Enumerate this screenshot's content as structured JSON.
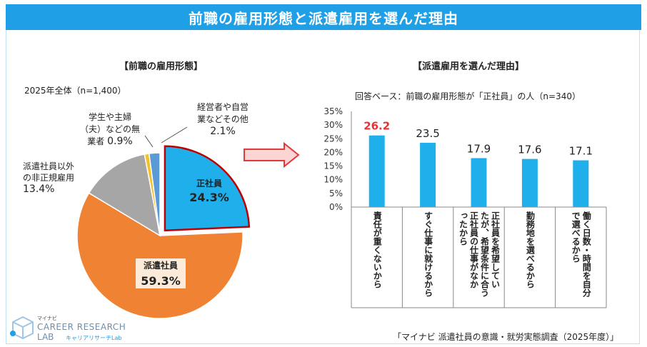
{
  "title": "前職の雇用形態と派遣雇用を選んだ理由",
  "left": {
    "heading": "【前職の雇用形態】",
    "base": "2025年全体（n=1,400）"
  },
  "right": {
    "heading": "【派遣雇用を選んだ理由】",
    "base": "回答ベース：前職の雇用形態が「正社員」の人（n=340）"
  },
  "source": "「マイナビ 派遣社員の意識・就労実態調査（2025年度）」",
  "logo": {
    "brand_small": "マイナビ",
    "line1": "CAREER RESEARCH",
    "line2": "LAB",
    "sub": "キャリアリサーチLab"
  },
  "pie_labels": {
    "seishain_name": "正社員",
    "seishain_value": "24.3%",
    "haken_name": "派遣社員",
    "haken_value": "59.3%",
    "hiseiki_line1": "派遣社員以外",
    "hiseiki_line2": "の非正規雇用",
    "hiseiki_value": "13.4%",
    "student_line1": "学生や主婦",
    "student_line2": "（夫）などの無",
    "student_line3": "業者",
    "student_value": "0.9%",
    "other_line1": "経営者や自営",
    "other_line2": "業などその他",
    "other_value": "2.1%"
  },
  "colors": {
    "banner": "#1fa0e6",
    "seishain": "#1fb0ec",
    "haken": "#ef8233",
    "hiseiki": "#a6a6a6",
    "student": "#f2c12e",
    "other": "#5b9bd5",
    "highlight": "#c00000",
    "bar": "#1fb0ec"
  },
  "chart_data": [
    {
      "type": "pie",
      "title": "【前職の雇用形態】",
      "subtitle": "2025年全体（n=1,400）",
      "categories": [
        "正社員",
        "派遣社員",
        "派遣社員以外の非正規雇用",
        "学生や主婦（夫）などの無業者",
        "経営者や自営業などその他"
      ],
      "values": [
        24.3,
        59.3,
        13.4,
        0.9,
        2.1
      ],
      "unit": "%"
    },
    {
      "type": "bar",
      "title": "【派遣雇用を選んだ理由】",
      "subtitle": "回答ベース：前職の雇用形態が「正社員」の人（n=340）",
      "categories": [
        "責任が重くないから",
        "すぐ仕事に就けるから",
        "正社員を希望していたが、希望条件に合う正社員の仕事がなかったから",
        "勤務地を選べるから",
        "働く日数・時間を自分で選べるから"
      ],
      "category_lines": [
        [
          "責任が重くないから"
        ],
        [
          "すぐ仕事に就けるから"
        ],
        [
          "正社員を希望してい",
          "たが、希望条件に合う",
          "正社員の仕事がなか",
          "ったから"
        ],
        [
          "勤務地を選べるから"
        ],
        [
          "働く日数・時間を自分",
          "で選べるから"
        ]
      ],
      "values": [
        26.2,
        23.5,
        17.9,
        17.6,
        17.1
      ],
      "data_labels": [
        "26.2",
        "23.5",
        "17.9",
        "17.6",
        "17.1"
      ],
      "yticks": [
        "0%",
        "5%",
        "10%",
        "15%",
        "20%",
        "25%",
        "30%",
        "35%"
      ],
      "ylim": [
        0,
        35
      ],
      "grid": false
    }
  ]
}
